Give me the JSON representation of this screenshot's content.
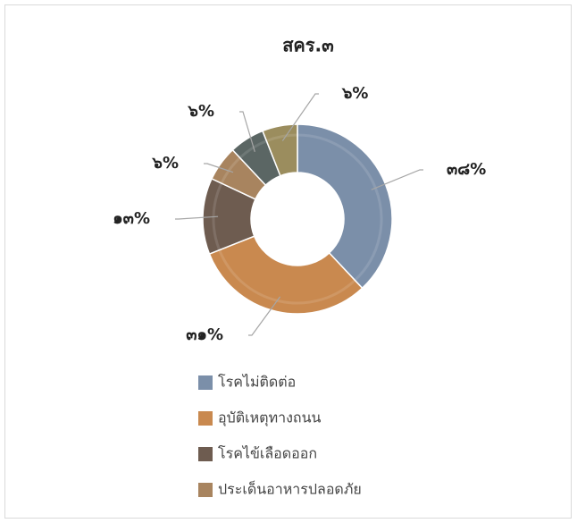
{
  "chart_data": {
    "type": "donut",
    "title": "สคร.๓",
    "categories": [
      "โรคไม่ติดต่อ",
      "อุบัติเหตุทางถนน",
      "โรคไข้เลือดออก",
      "ประเด็นอาหารปลอดภัย",
      null,
      null
    ],
    "values": [
      38,
      31,
      13,
      6,
      6,
      6
    ],
    "value_labels": [
      "๓๘%",
      "๓๑%",
      "๑๓%",
      "๖%",
      "๖%",
      "๖%"
    ],
    "colors": [
      "#7b8fa9",
      "#c9894f",
      "#6e5c50",
      "#a8845f",
      "#5b6664",
      "#9b8d5e"
    ],
    "legend": "bottom"
  }
}
